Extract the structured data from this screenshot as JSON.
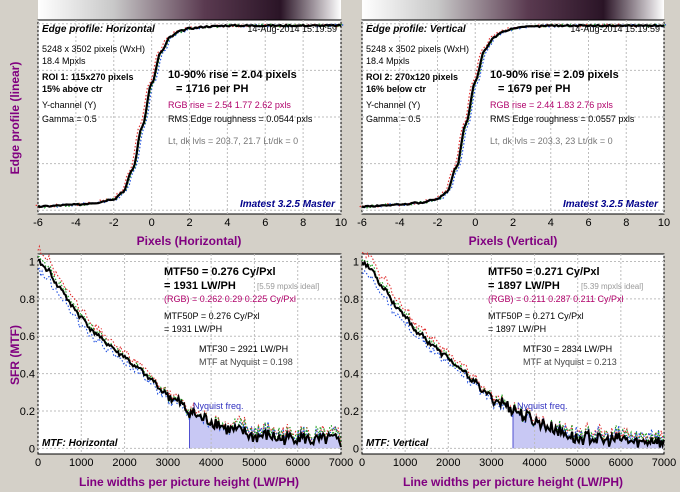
{
  "colors": {
    "background": "#d4d0c8",
    "axis_label": "#800080",
    "brand": "#00008b",
    "rgb": "#b0006a",
    "nyquist_fill": "#c8c8f4"
  },
  "edge": {
    "ylabel": "Edge profile (linear)",
    "xlabel_h": "Pixels (Horizontal)",
    "xlabel_v": "Pixels (Vertical)",
    "xticks": [
      "-6",
      "-4",
      "-2",
      "0",
      "2",
      "4",
      "6",
      "8",
      "10"
    ]
  },
  "mtf": {
    "ylabel": "SFR (MTF)",
    "xlabel": "Line widths per picture height (LW/PH)",
    "xticks": [
      "0",
      "1000",
      "2000",
      "3000",
      "4000",
      "5000",
      "6000",
      "7000"
    ],
    "yticks": [
      "0",
      "0.2",
      "0.4",
      "0.6",
      "0.8",
      "1"
    ]
  },
  "panels": {
    "edge_h": {
      "title": "Edge profile: Horizontal",
      "date": "14-Aug-2014 15:19:59",
      "size": "5248 x 3502 pixels (WxH)",
      "mpx": "18.4 Mpxls",
      "roi": "ROI 1:  115x270 pixels",
      "roi_pos": "15% above ctr",
      "channel": "Y-channel  (Y)",
      "gamma": "Gamma = 0.5",
      "rise1": "10-90% rise = 2.04 pixels",
      "rise2": "= 1716 per PH",
      "rgb_rise": "RGB rise = 2.54  1.77  2.62 pxls",
      "rough": "RMS Edge roughness = 0.0544 pxls",
      "lvls": "Lt, dk lvls = 203.7, 21.7    Lt/dk = 0",
      "brand": "Imatest 3.2.5 Master"
    },
    "edge_v": {
      "title": "Edge profile: Vertical",
      "date": "14-Aug-2014 15:19:59",
      "size": "5248 x 3502 pixels (WxH)",
      "mpx": "18.4 Mpxls",
      "roi": "ROI 2:  270x120 pixels",
      "roi_pos": "16% below ctr",
      "channel": "Y-channel  (Y)",
      "gamma": "Gamma = 0.5",
      "rise1": "10-90% rise = 2.09 pixels",
      "rise2": "= 1679 per PH",
      "rgb_rise": "RGB rise = 2.44  1.83  2.76 pxls",
      "rough": "RMS Edge roughness = 0.0557 pxls",
      "lvls": "Lt, dk lvls = 203.3, 23    Lt/dk = 0",
      "brand": "Imatest 3.2.5 Master"
    },
    "mtf_h": {
      "title": "MTF: Horizontal",
      "mtf50": "MTF50 = 0.276 Cy/Pxl",
      "mtf50b": "= 1931 LW/PH",
      "ideal": "[5.59 mpxls ideal]",
      "rgb": "(RGB) = 0.262  0.29  0.225 Cy/Pxl",
      "p1": "MTF50P = 0.276 Cy/Pxl",
      "p2": "= 1931 LW/PH",
      "mtf30": "MTF30 = 2921 LW/PH",
      "nyq": "MTF at Nyquist = 0.198",
      "nyq_label": "Nyquist freq."
    },
    "mtf_v": {
      "title": "MTF: Vertical",
      "mtf50": "MTF50 = 0.271 Cy/Pxl",
      "mtf50b": "= 1897 LW/PH",
      "ideal": "[5.39 mpxls ideal]",
      "rgb": "(RGB) = 0.211  0.287  0.211 Cy/Pxl",
      "p1": "MTF50P = 0.271 Cy/Pxl",
      "p2": "= 1897 LW/PH",
      "mtf30": "MTF30 = 2834 LW/PH",
      "nyq": "MTF at Nyquist = 0.213",
      "nyq_label": "Nyquist freq."
    }
  },
  "chart_data": [
    {
      "type": "line",
      "title": "Edge profile: Horizontal",
      "xlabel": "Pixels (Horizontal)",
      "ylabel": "Edge profile (linear)",
      "xlim": [
        -6,
        10
      ],
      "grid": true,
      "x": [
        -6,
        -4,
        -3,
        -2,
        -1.5,
        -1,
        -0.5,
        0,
        0.5,
        1,
        1.5,
        2,
        3,
        4,
        6,
        8,
        10
      ],
      "series": [
        {
          "values": [
            0.02,
            0.03,
            0.04,
            0.06,
            0.1,
            0.22,
            0.45,
            0.68,
            0.85,
            0.93,
            0.96,
            0.975,
            0.985,
            0.99,
            0.99,
            0.99,
            0.99
          ]
        }
      ]
    },
    {
      "type": "line",
      "title": "Edge profile: Vertical",
      "xlabel": "Pixels (Vertical)",
      "ylabel": "Edge profile (linear)",
      "xlim": [
        -6,
        10
      ],
      "grid": true,
      "x": [
        -6,
        -4,
        -3,
        -2,
        -1.5,
        -1,
        -0.5,
        0,
        0.5,
        1,
        1.5,
        2,
        3,
        4,
        6,
        8,
        10
      ],
      "series": [
        {
          "values": [
            0.02,
            0.03,
            0.04,
            0.06,
            0.1,
            0.23,
            0.46,
            0.69,
            0.86,
            0.93,
            0.96,
            0.975,
            0.985,
            0.99,
            0.99,
            0.99,
            0.99
          ]
        }
      ]
    },
    {
      "type": "line",
      "title": "MTF: Horizontal",
      "xlabel": "Line widths per picture height (LW/PH)",
      "ylabel": "SFR (MTF)",
      "xlim": [
        0,
        7000
      ],
      "ylim": [
        0,
        1.05
      ],
      "grid": true,
      "x": [
        0,
        200,
        500,
        800,
        1000,
        1300,
        1600,
        1931,
        2300,
        2600,
        2921,
        3200,
        3500,
        3800,
        4100,
        4400,
        4700,
        5000,
        5300,
        5600,
        6000,
        6400,
        6800,
        7000
      ],
      "series": [
        {
          "values": [
            1.0,
            0.96,
            0.86,
            0.76,
            0.7,
            0.62,
            0.56,
            0.5,
            0.43,
            0.37,
            0.3,
            0.25,
            0.198,
            0.16,
            0.14,
            0.1,
            0.09,
            0.06,
            0.07,
            0.05,
            0.06,
            0.04,
            0.05,
            0.03
          ]
        }
      ]
    },
    {
      "type": "line",
      "title": "MTF: Vertical",
      "xlabel": "Line widths per picture height (LW/PH)",
      "ylabel": "SFR (MTF)",
      "xlim": [
        0,
        7000
      ],
      "ylim": [
        0,
        1.05
      ],
      "grid": true,
      "x": [
        0,
        200,
        500,
        800,
        1000,
        1300,
        1600,
        1897,
        2300,
        2600,
        2834,
        3200,
        3500,
        3800,
        4100,
        4400,
        4700,
        5000,
        5300,
        5600,
        6000,
        6400,
        6800,
        7000
      ],
      "series": [
        {
          "values": [
            1.0,
            0.96,
            0.86,
            0.76,
            0.7,
            0.62,
            0.56,
            0.5,
            0.42,
            0.36,
            0.3,
            0.25,
            0.213,
            0.17,
            0.14,
            0.11,
            0.08,
            0.05,
            0.06,
            0.04,
            0.05,
            0.03,
            0.05,
            0.02
          ]
        }
      ]
    }
  ]
}
